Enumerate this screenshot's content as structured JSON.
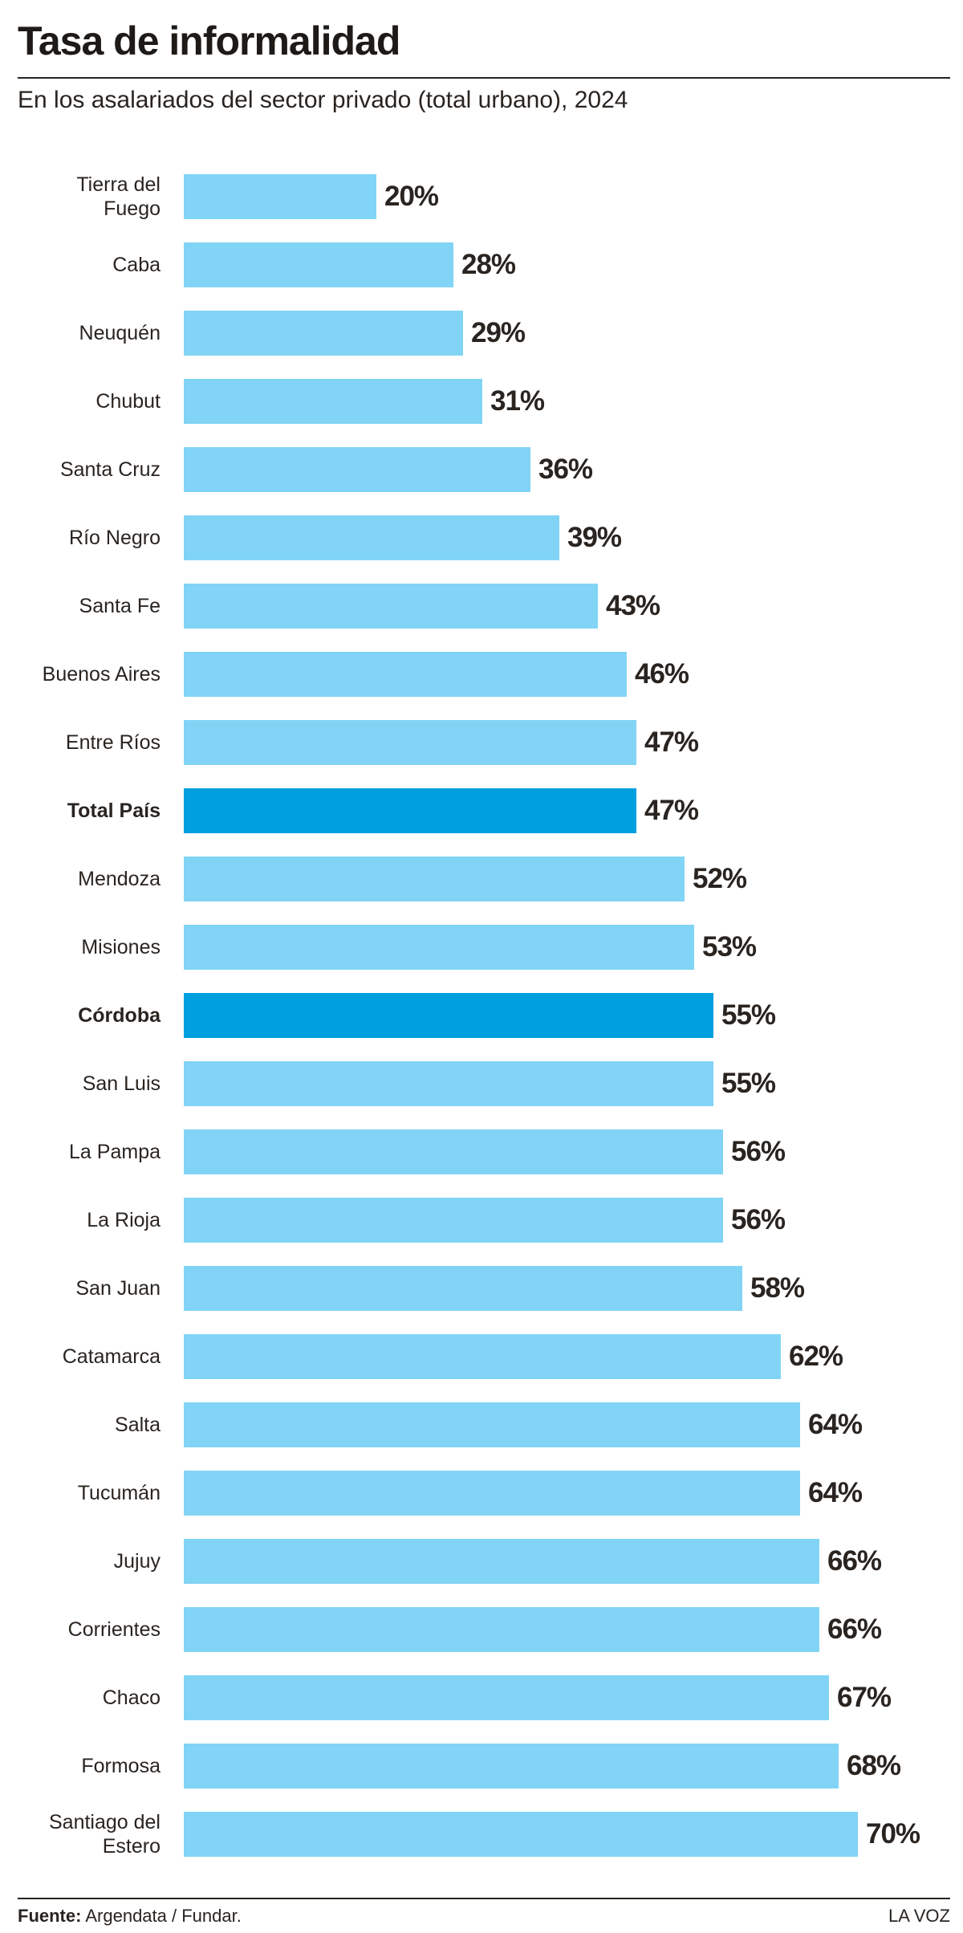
{
  "chart_data": {
    "type": "hbar",
    "title": "Tasa de informalidad",
    "subtitle": "En los asalariados del sector privado (total urbano), 2024",
    "categories": [
      "Tierra del Fuego",
      "Caba",
      "Neuquén",
      "Chubut",
      "Santa Cruz",
      "Río Negro",
      "Santa Fe",
      "Buenos Aires",
      "Entre Ríos",
      "Total País",
      "Mendoza",
      "Misiones",
      "Córdoba",
      "San Luis",
      "La Pampa",
      "La Rioja",
      "San Juan",
      "Catamarca",
      "Salta",
      "Tucumán",
      "Jujuy",
      "Corrientes",
      "Chaco",
      "Formosa",
      "Santiago del Estero"
    ],
    "values": [
      20,
      28,
      29,
      31,
      36,
      39,
      43,
      46,
      47,
      47,
      52,
      53,
      55,
      55,
      56,
      56,
      58,
      62,
      64,
      64,
      66,
      66,
      67,
      68,
      70
    ],
    "value_labels": [
      "20%",
      "28%",
      "29%",
      "31%",
      "36%",
      "39%",
      "43%",
      "46%",
      "47%",
      "47%",
      "52%",
      "53%",
      "55%",
      "55%",
      "56%",
      "56%",
      "58%",
      "62%",
      "64%",
      "64%",
      "66%",
      "66%",
      "67%",
      "68%",
      "70%"
    ],
    "color": "#81d4f5",
    "colors": [
      "#81d4f5",
      "#81d4f5",
      "#81d4f5",
      "#81d4f5",
      "#81d4f5",
      "#81d4f5",
      "#81d4f5",
      "#81d4f5",
      "#81d4f5",
      "#009fdf",
      "#81d4f5",
      "#81d4f5",
      "#009fdf",
      "#81d4f5",
      "#81d4f5",
      "#81d4f5",
      "#81d4f5",
      "#81d4f5",
      "#81d4f5",
      "#81d4f5",
      "#81d4f5",
      "#81d4f5",
      "#81d4f5",
      "#81d4f5",
      "#81d4f5"
    ],
    "footer": {
      "source_label": "Fuente:",
      "source": "Argendata / Fundar.",
      "brand": "LA VOZ"
    }
  }
}
